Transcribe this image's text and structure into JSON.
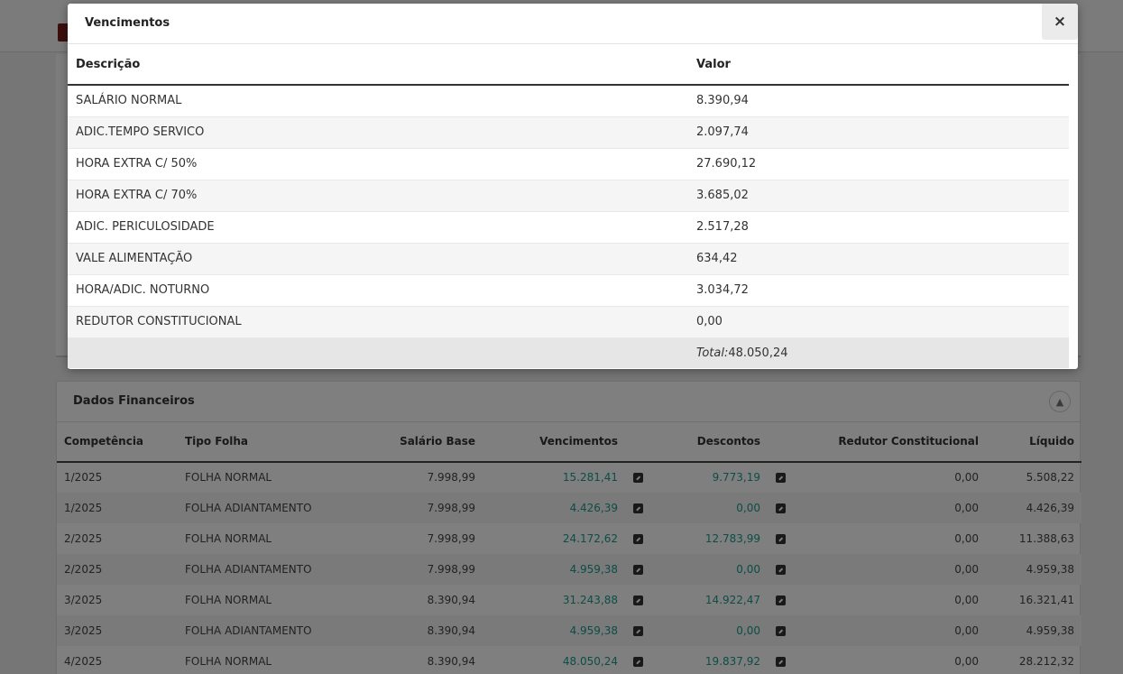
{
  "modal": {
    "title": "Vencimentos",
    "close_label": "×",
    "columns": {
      "description": "Descrição",
      "value": "Valor"
    },
    "rows": [
      {
        "description": "SALÁRIO NORMAL",
        "value": "8.390,94"
      },
      {
        "description": "ADIC.TEMPO SERVICO",
        "value": "2.097,74"
      },
      {
        "description": "HORA EXTRA C/ 50%",
        "value": "27.690,12"
      },
      {
        "description": "HORA EXTRA C/ 70%",
        "value": "3.685,02"
      },
      {
        "description": "ADIC. PERICULOSIDADE",
        "value": "2.517,28"
      },
      {
        "description": "VALE ALIMENTAÇÃO",
        "value": "634,42"
      },
      {
        "description": "HORA/ADIC. NOTURNO",
        "value": "3.034,72"
      },
      {
        "description": "REDUTOR CONSTITUCIONAL",
        "value": "0,00"
      }
    ],
    "total_label": "Total:",
    "total_value": "48.050,24"
  },
  "financial": {
    "title": "Dados Financeiros",
    "columns": {
      "competencia": "Competência",
      "tipo_folha": "Tipo Folha",
      "salario_base": "Salário Base",
      "vencimentos": "Vencimentos",
      "descontos": "Descontos",
      "redutor": "Redutor Constitucional",
      "liquido": "Líquido"
    },
    "rows": [
      {
        "competencia": "1/2025",
        "tipo_folha": "FOLHA NORMAL",
        "salario_base": "7.998,99",
        "vencimentos": "15.281,41",
        "descontos": "9.773,19",
        "redutor": "0,00",
        "liquido": "5.508,22"
      },
      {
        "competencia": "1/2025",
        "tipo_folha": "FOLHA ADIANTAMENTO",
        "salario_base": "7.998,99",
        "vencimentos": "4.426,39",
        "descontos": "0,00",
        "redutor": "0,00",
        "liquido": "4.426,39"
      },
      {
        "competencia": "2/2025",
        "tipo_folha": "FOLHA NORMAL",
        "salario_base": "7.998,99",
        "vencimentos": "24.172,62",
        "descontos": "12.783,99",
        "redutor": "0,00",
        "liquido": "11.388,63"
      },
      {
        "competencia": "2/2025",
        "tipo_folha": "FOLHA ADIANTAMENTO",
        "salario_base": "7.998,99",
        "vencimentos": "4.959,38",
        "descontos": "0,00",
        "redutor": "0,00",
        "liquido": "4.959,38"
      },
      {
        "competencia": "3/2025",
        "tipo_folha": "FOLHA NORMAL",
        "salario_base": "8.390,94",
        "vencimentos": "31.243,88",
        "descontos": "14.922,47",
        "redutor": "0,00",
        "liquido": "16.321,41"
      },
      {
        "competencia": "3/2025",
        "tipo_folha": "FOLHA ADIANTAMENTO",
        "salario_base": "8.390,94",
        "vencimentos": "4.959,38",
        "descontos": "0,00",
        "redutor": "0,00",
        "liquido": "4.959,38"
      },
      {
        "competencia": "4/2025",
        "tipo_folha": "FOLHA NORMAL",
        "salario_base": "8.390,94",
        "vencimentos": "48.050,24",
        "descontos": "19.837,92",
        "redutor": "0,00",
        "liquido": "28.212,32"
      }
    ]
  },
  "icons": {
    "collapse": "chevron-up-icon",
    "open_detail": "external-link-icon",
    "close": "close-icon"
  },
  "colors": {
    "link": "#1a9b8d",
    "overlay": "rgba(0,0,0,0.5)"
  }
}
